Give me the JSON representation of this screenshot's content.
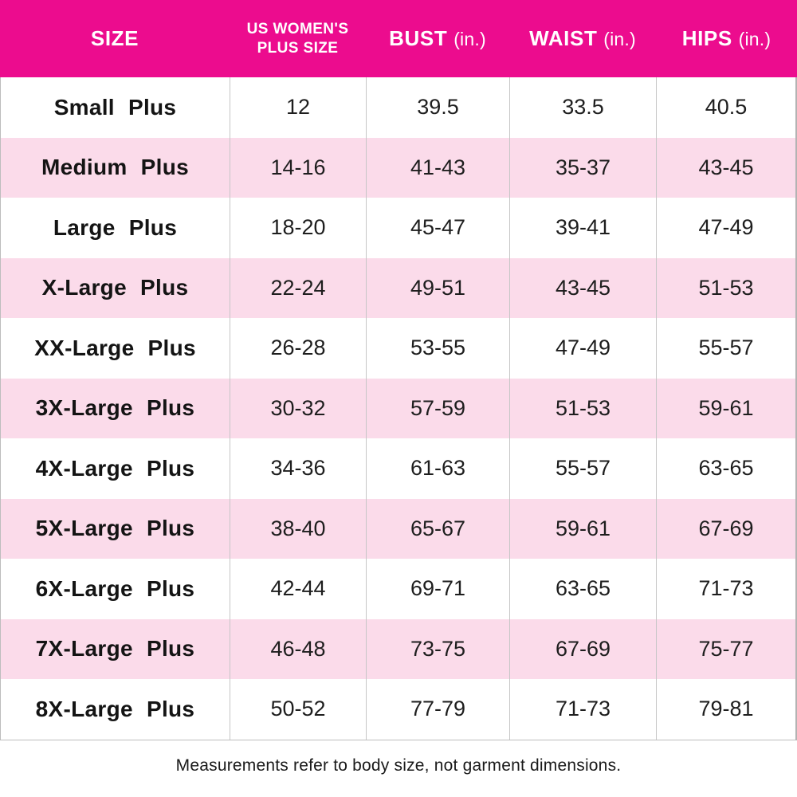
{
  "header": {
    "columns": [
      {
        "title": "SIZE"
      },
      {
        "title": "US WOMEN'S",
        "title_line2": "PLUS SIZE"
      },
      {
        "title": "BUST",
        "unit": "(in.)"
      },
      {
        "title": "WAIST",
        "unit": "(in.)"
      },
      {
        "title": "HIPS",
        "unit": "(in.)"
      }
    ]
  },
  "rows": [
    {
      "size": "Small Plus",
      "us_size": "12",
      "bust": "39.5",
      "waist": "33.5",
      "hips": "40.5"
    },
    {
      "size": "Medium Plus",
      "us_size": "14-16",
      "bust": "41-43",
      "waist": "35-37",
      "hips": "43-45"
    },
    {
      "size": "Large Plus",
      "us_size": "18-20",
      "bust": "45-47",
      "waist": "39-41",
      "hips": "47-49"
    },
    {
      "size": "X-Large Plus",
      "us_size": "22-24",
      "bust": "49-51",
      "waist": "43-45",
      "hips": "51-53"
    },
    {
      "size": "XX-Large Plus",
      "us_size": "26-28",
      "bust": "53-55",
      "waist": "47-49",
      "hips": "55-57"
    },
    {
      "size": "3X-Large Plus",
      "us_size": "30-32",
      "bust": "57-59",
      "waist": "51-53",
      "hips": "59-61"
    },
    {
      "size": "4X-Large Plus",
      "us_size": "34-36",
      "bust": "61-63",
      "waist": "55-57",
      "hips": "63-65"
    },
    {
      "size": "5X-Large Plus",
      "us_size": "38-40",
      "bust": "65-67",
      "waist": "59-61",
      "hips": "67-69"
    },
    {
      "size": "6X-Large Plus",
      "us_size": "42-44",
      "bust": "69-71",
      "waist": "63-65",
      "hips": "71-73"
    },
    {
      "size": "7X-Large Plus",
      "us_size": "46-48",
      "bust": "73-75",
      "waist": "67-69",
      "hips": "75-77"
    },
    {
      "size": "8X-Large Plus",
      "us_size": "50-52",
      "bust": "77-79",
      "waist": "71-73",
      "hips": "79-81"
    }
  ],
  "footer": {
    "note": "Measurements refer to body size, not garment dimensions."
  },
  "colors": {
    "header_bg": "#EC0C8E",
    "header_text": "#FFFFFF",
    "row_bg": "#FFFFFF",
    "row_alt_bg": "#FBDBEA",
    "grid_line": "#C6C6C6",
    "body_text": "#1E1E1E"
  }
}
